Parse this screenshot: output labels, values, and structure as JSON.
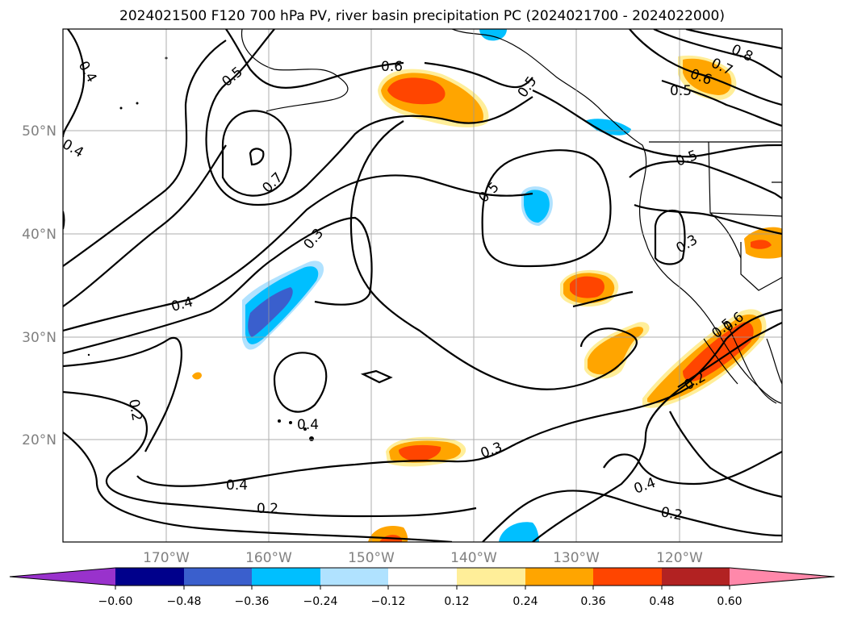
{
  "title": "2024021500 F120 700 hPa PV, river basin precipitation PC (2024021700 - 2024022000)",
  "map": {
    "lat_labels": [
      "50°N",
      "40°N",
      "30°N",
      "20°N"
    ],
    "lon_labels": [
      "170°W",
      "160°W",
      "150°W",
      "140°W",
      "130°W",
      "120°W"
    ],
    "contour_labels": [
      "0.4",
      "0.5",
      "0.4",
      "0.6",
      "0.5",
      "0.7",
      "0.6",
      "0.8",
      "0.5",
      "0.7",
      "0.5",
      "0.5",
      "0.3",
      "0.3",
      "0.4",
      "0.2",
      "0.4",
      "0.3",
      "0.4",
      "0.2",
      "0.4",
      "0.2",
      "0.2",
      "0.5",
      "0.6"
    ]
  },
  "colorbar": {
    "ticks": [
      "−0.60",
      "−0.48",
      "−0.36",
      "−0.24",
      "−0.12",
      "0.12",
      "0.24",
      "0.36",
      "0.48",
      "0.60"
    ],
    "colors": [
      "#9932cc",
      "#00008b",
      "#3a5fcd",
      "#00bfff",
      "#b0e2ff",
      "#ffffff",
      "#ffee99",
      "#ffa500",
      "#ff4500",
      "#b22222",
      "#ff88aa"
    ]
  }
}
